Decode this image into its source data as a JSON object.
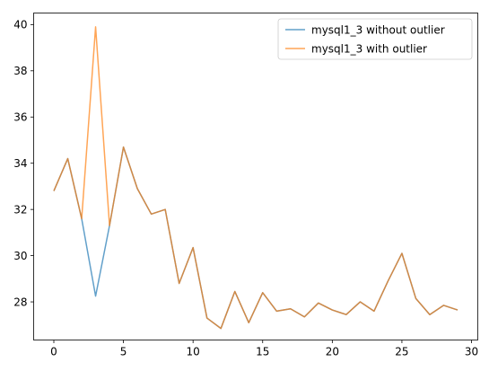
{
  "chart_data": {
    "type": "line",
    "title": "",
    "xlabel": "",
    "ylabel": "",
    "xlim": [
      -1.45,
      30.45
    ],
    "ylim": [
      26.35,
      40.5
    ],
    "xticks": [
      0,
      5,
      10,
      15,
      20,
      25,
      30
    ],
    "yticks": [
      28,
      30,
      32,
      34,
      36,
      38,
      40
    ],
    "grid": false,
    "legend_position": "top-right",
    "x": [
      0,
      1,
      2,
      3,
      4,
      5,
      6,
      7,
      8,
      9,
      10,
      11,
      12,
      13,
      14,
      15,
      16,
      17,
      18,
      19,
      20,
      21,
      22,
      23,
      24,
      25,
      26,
      27,
      28,
      29
    ],
    "series": [
      {
        "name": "mysql1_3 without outlier",
        "color": "#1f77b4",
        "values": [
          32.8,
          34.2,
          31.6,
          28.25,
          31.3,
          34.7,
          32.9,
          31.8,
          32.0,
          28.8,
          30.35,
          27.3,
          26.85,
          28.45,
          27.1,
          28.4,
          27.6,
          27.7,
          27.35,
          27.95,
          27.65,
          27.45,
          28.0,
          27.6,
          28.9,
          30.1,
          28.15,
          27.45,
          27.85,
          27.65
        ]
      },
      {
        "name": "mysql1_3 with outlier",
        "color": "#ff7f0e",
        "values": [
          32.8,
          34.2,
          31.6,
          39.9,
          31.3,
          34.7,
          32.9,
          31.8,
          32.0,
          28.8,
          30.35,
          27.3,
          26.85,
          28.45,
          27.1,
          28.4,
          27.6,
          27.7,
          27.35,
          27.95,
          27.65,
          27.45,
          28.0,
          27.6,
          28.9,
          30.1,
          28.15,
          27.45,
          27.85,
          27.65
        ]
      }
    ]
  }
}
